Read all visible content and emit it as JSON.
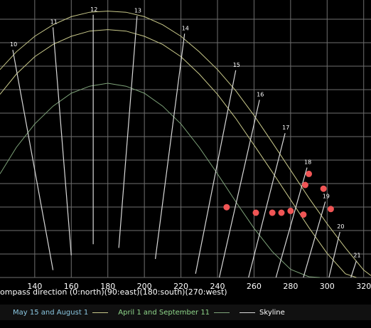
{
  "chart_data": {
    "type": "line",
    "title": "",
    "xlabel": "ompass direction (0:north)(90:east)(180:south)(270:west)",
    "ylabel": "",
    "xlim": [
      121,
      324
    ],
    "ylim": [
      0,
      75
    ],
    "x_ticks": [
      140,
      160,
      180,
      200,
      220,
      240,
      260,
      280,
      300,
      320
    ],
    "grid": true,
    "legend": "bottom",
    "colors": {
      "background": "#000000",
      "grid": "#6f6f6f",
      "may": "#c9c98a",
      "april": "#7fa47a",
      "skyline": "#d8d8d8",
      "points": "#f05555",
      "legend_may_text": "#8ac6e0",
      "legend_april_text": "#8fd68a",
      "legend_skyline_text": "#ffffff"
    },
    "series": [
      {
        "name": "May 15 and August 1",
        "path_type": "sun-path",
        "x": [
          121,
          130,
          140,
          150,
          160,
          170,
          180,
          190,
          200,
          210,
          220,
          230,
          240,
          250,
          260,
          270,
          280,
          290,
          300,
          310,
          320,
          324
        ],
        "y": [
          56.2,
          61.0,
          65.2,
          68.3,
          70.5,
          71.7,
          72.0,
          71.7,
          70.5,
          68.3,
          65.2,
          61.0,
          56.2,
          50.5,
          43.8,
          36.5,
          29.0,
          21.5,
          14.5,
          8.0,
          2.0,
          0.5
        ]
      },
      {
        "name": "",
        "path_type": "sun-path",
        "x": [
          121,
          130,
          140,
          150,
          160,
          170,
          180,
          190,
          200,
          210,
          220,
          230,
          240,
          250,
          260,
          270,
          280,
          290,
          300,
          310,
          316
        ],
        "y": [
          49.5,
          55.0,
          59.7,
          63.0,
          65.2,
          66.6,
          67.0,
          66.6,
          65.2,
          63.0,
          59.7,
          55.0,
          49.5,
          43.0,
          35.8,
          28.5,
          21.0,
          13.5,
          6.5,
          1.0,
          0
        ]
      },
      {
        "name": "April 1 and September 11",
        "path_type": "sun-path",
        "x": [
          121,
          130,
          140,
          150,
          160,
          170,
          180,
          190,
          200,
          210,
          220,
          230,
          240,
          250,
          260,
          270,
          280,
          290,
          296
        ],
        "y": [
          28.0,
          35.2,
          41.5,
          46.3,
          49.8,
          51.7,
          52.5,
          51.7,
          49.8,
          46.3,
          41.5,
          35.2,
          28.0,
          20.5,
          13.3,
          7.0,
          2.2,
          0.2,
          0
        ]
      }
    ],
    "hour_lines": [
      {
        "label": "10",
        "x1": 128,
        "y1": 61.5,
        "x2": 150,
        "y2": 2
      },
      {
        "label": "11",
        "x1": 150,
        "y1": 67.6,
        "x2": 160,
        "y2": 6
      },
      {
        "label": "12",
        "x1": 172,
        "y1": 71.0,
        "x2": 172,
        "y2": 9
      },
      {
        "label": "13",
        "x1": 196,
        "y1": 70.7,
        "x2": 186,
        "y2": 8
      },
      {
        "label": "14",
        "x1": 222,
        "y1": 65.9,
        "x2": 206,
        "y2": 5
      },
      {
        "label": "15",
        "x1": 250,
        "y1": 56.0,
        "x2": 228,
        "y2": 1
      },
      {
        "label": "16",
        "x1": 263,
        "y1": 48.0,
        "x2": 241,
        "y2": 0
      },
      {
        "label": "17",
        "x1": 277,
        "y1": 39.0,
        "x2": 257,
        "y2": 0
      },
      {
        "label": "18",
        "x1": 289,
        "y1": 29.7,
        "x2": 272,
        "y2": 0
      },
      {
        "label": "19",
        "x1": 299,
        "y1": 20.5,
        "x2": 287,
        "y2": 0
      },
      {
        "label": "20",
        "x1": 307,
        "y1": 12.3,
        "x2": 301,
        "y2": 0
      },
      {
        "label": "21",
        "x1": 316,
        "y1": 4.5,
        "x2": 313,
        "y2": 0
      }
    ],
    "skyline_points": {
      "name": "Skyline",
      "x": [
        245,
        261,
        270,
        280,
        290,
        288,
        298,
        302,
        287,
        275
      ],
      "y": [
        19.0,
        17.5,
        17.5,
        18.0,
        28.0,
        25.0,
        24.0,
        18.5,
        17.0,
        17.5
      ]
    },
    "legend_entries": [
      {
        "label": "May 15 and August 1",
        "key": "may"
      },
      {
        "label": "April 1 and September 11",
        "key": "april"
      },
      {
        "label": "Skyline",
        "key": "skyline"
      }
    ]
  }
}
